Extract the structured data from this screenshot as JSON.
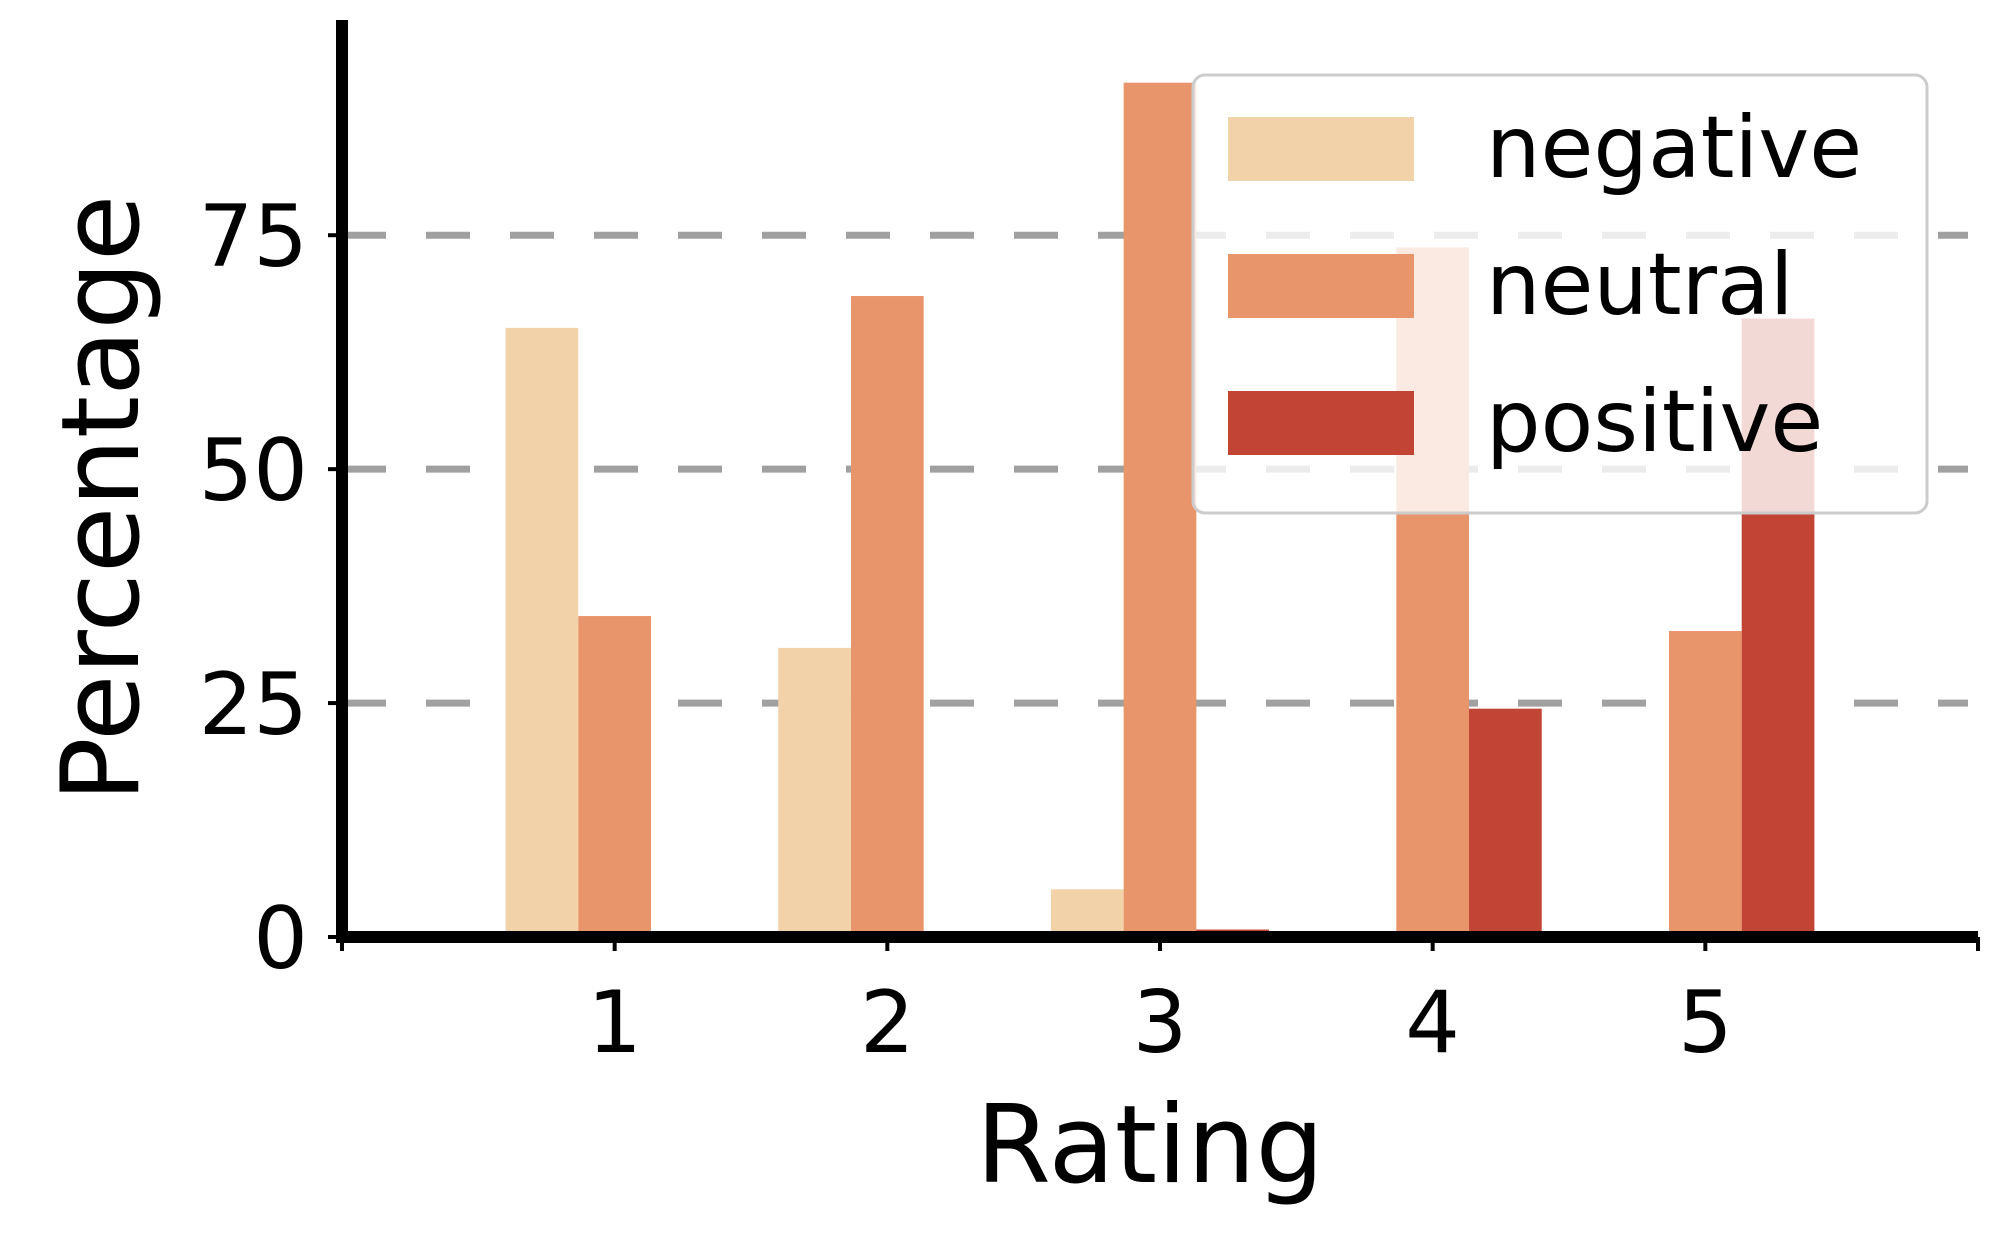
{
  "chart_data": {
    "type": "bar",
    "title": "",
    "xlabel": "Rating",
    "ylabel": "Percentage",
    "categories": [
      "1",
      "2",
      "3",
      "4",
      "5"
    ],
    "x_range": [
      0,
      6
    ],
    "ylim": [
      0,
      98
    ],
    "yticks": [
      0,
      25,
      50,
      75
    ],
    "grid": "horizontal dashed",
    "legend": "top-right",
    "series": [
      {
        "name": "negative",
        "color": "#f2d2a9",
        "values": [
          65.1,
          30.9,
          5.1,
          0,
          0
        ]
      },
      {
        "name": "neutral",
        "color": "#e8956b",
        "values": [
          34.3,
          68.5,
          91.3,
          73.7,
          32.7
        ]
      },
      {
        "name": "positive",
        "color": "#c24434",
        "values": [
          0,
          0,
          0.8,
          24.4,
          66.1
        ]
      }
    ]
  }
}
